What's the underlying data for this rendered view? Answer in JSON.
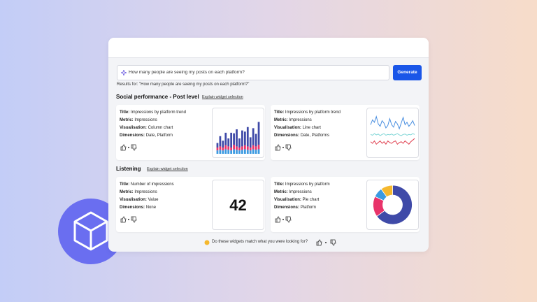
{
  "search": {
    "query": "How many people are seeing my posts on each platform?",
    "button": "Generate",
    "results_for": "Results for: \"How many people are seeing my posts on each platform?\""
  },
  "sections": [
    {
      "title": "Social performance - Post level",
      "link": "Explain widget selection",
      "widgets": [
        {
          "fields": [
            {
              "label": "Title:",
              "value": "Impressions by platform trend"
            },
            {
              "label": "Metric:",
              "value": "Impressions"
            },
            {
              "label": "Visualisation:",
              "value": "Column chart"
            },
            {
              "label": "Dimensions:",
              "value": "Date, Platform"
            }
          ],
          "chart": {
            "type": "stacked-bar",
            "ylim": [
              0,
              70
            ],
            "series": [
              {
                "color": "#3b9ae1",
                "values": [
                  6,
                  7,
                  6,
                  8,
                  7,
                  6,
                  8,
                  7,
                  6,
                  7,
                  8,
                  7,
                  6,
                  8,
                  7,
                  8
                ]
              },
              {
                "color": "#e8336a",
                "values": [
                  5,
                  6,
                  5,
                  7,
                  6,
                  5,
                  8,
                  6,
                  5,
                  6,
                  7,
                  6,
                  5,
                  7,
                  6,
                  8
                ]
              },
              {
                "color": "#3f4aa8",
                "values": [
                  8,
                  18,
                  12,
                  22,
                  14,
                  26,
                  20,
                  30,
                  16,
                  28,
                  24,
                  34,
                  18,
                  30,
                  22,
                  40
                ]
              }
            ]
          }
        },
        {
          "fields": [
            {
              "label": "Title:",
              "value": "Impressions by platform trend"
            },
            {
              "label": "Metric:",
              "value": "Impressions"
            },
            {
              "label": "Visualisation:",
              "value": "Line chart"
            },
            {
              "label": "Dimensions:",
              "value": "Date, Platforms"
            }
          ],
          "chart": {
            "type": "line",
            "ylim": [
              0,
              100
            ],
            "series": [
              {
                "color": "#4a8fe0",
                "values": [
                  70,
                  82,
                  76,
                  90,
                  72,
                  66,
                  80,
                  74,
                  62,
                  68,
                  85,
                  70,
                  64,
                  78,
                  72,
                  60,
                  74,
                  88,
                  70,
                  76,
                  66,
                  72,
                  80,
                  68
                ]
              },
              {
                "color": "#7ed6d6",
                "values": [
                  46,
                  44,
                  48,
                  45,
                  47,
                  43,
                  46,
                  48,
                  44,
                  46,
                  45,
                  47,
                  44,
                  46,
                  48,
                  45,
                  43,
                  46,
                  47,
                  44,
                  46,
                  45,
                  48,
                  46
                ]
              },
              {
                "color": "#e04050",
                "values": [
                  28,
                  24,
                  30,
                  22,
                  26,
                  30,
                  24,
                  28,
                  22,
                  30,
                  26,
                  24,
                  28,
                  30,
                  22,
                  26,
                  28,
                  24,
                  30,
                  26,
                  22,
                  28,
                  32,
                  36
                ]
              }
            ]
          }
        }
      ]
    },
    {
      "title": "Listening",
      "link": "Explain widget selection",
      "widgets": [
        {
          "fields": [
            {
              "label": "Title:",
              "value": "Number of impressions"
            },
            {
              "label": "Metric:",
              "value": "Impressions"
            },
            {
              "label": "Visualisation:",
              "value": "Value"
            },
            {
              "label": "Dimensions:",
              "value": "None"
            }
          ],
          "chart": {
            "type": "value",
            "value": 42
          }
        },
        {
          "fields": [
            {
              "label": "Title:",
              "value": "Impressions by platform"
            },
            {
              "label": "Metric:",
              "value": "Impressions"
            },
            {
              "label": "Visualisation:",
              "value": "Pie chart"
            },
            {
              "label": "Dimensions:",
              "value": "Platform"
            }
          ],
          "chart": {
            "type": "pie",
            "values": [
              65,
              17,
              8,
              10
            ],
            "colors": [
              "#3f4aa8",
              "#e8336a",
              "#3b9ae1",
              "#f5b82e"
            ]
          }
        }
      ]
    }
  ],
  "footer": "Do these widgets match what you were looking for?"
}
